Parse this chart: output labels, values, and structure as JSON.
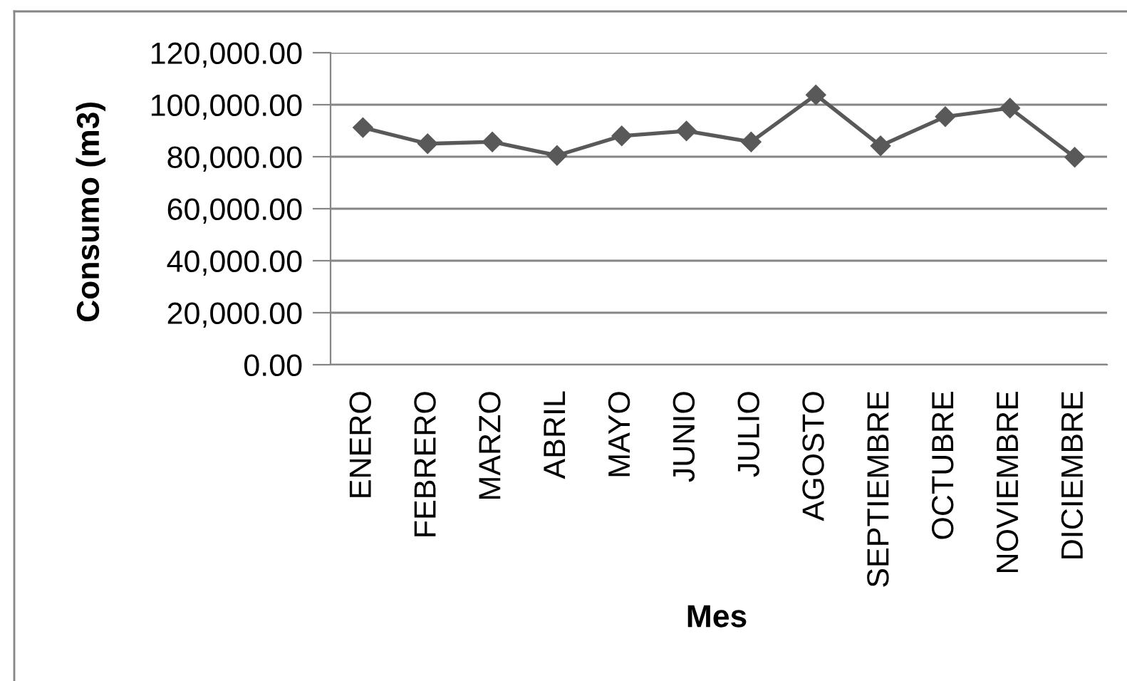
{
  "chart_data": {
    "type": "line",
    "xlabel": "Mes",
    "ylabel": "Consumo (m3)",
    "categories": [
      "ENERO",
      "FEBRERO",
      "MARZO",
      "ABRIL",
      "MAYO",
      "JUNIO",
      "JULIO",
      "AGOSTO",
      "SEPTIEMBRE",
      "OCTUBRE",
      "NOVIEMBRE",
      "DICIEMBRE"
    ],
    "series": [
      {
        "color": "#595959",
        "values": [
          91200,
          85000,
          85700,
          80500,
          88000,
          89900,
          85700,
          103800,
          84200,
          95400,
          98700,
          79800
        ]
      }
    ],
    "ylim": [
      0,
      120000
    ],
    "yticks": [
      {
        "value": 0,
        "label": "0.00"
      },
      {
        "value": 20000,
        "label": "20,000.00"
      },
      {
        "value": 40000,
        "label": "40,000.00"
      },
      {
        "value": 60000,
        "label": "60,000.00"
      },
      {
        "value": 80000,
        "label": "80,000.00"
      },
      {
        "value": 100000,
        "label": "100,000.00"
      },
      {
        "value": 120000,
        "label": "120,000.00"
      }
    ],
    "grid": "y",
    "legend": false,
    "marker": "diamond",
    "line_style": "solid"
  }
}
